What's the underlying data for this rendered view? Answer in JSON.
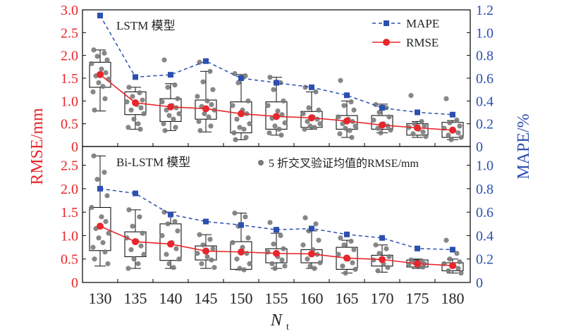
{
  "chart_data": {
    "type": "box",
    "x_categories": [
      130,
      135,
      140,
      145,
      150,
      155,
      160,
      165,
      170,
      175,
      180
    ],
    "xlabel": "N",
    "xlabel_sub": "t",
    "ylabel_left": "RMSE/mm",
    "ylabel_right": "MAPE/%",
    "colors": {
      "rmse": "#e8262b",
      "mape": "#2c4fb0",
      "scatter": "#7a7a7a",
      "box": "#111111"
    },
    "legend": {
      "mape": "MAPE",
      "rmse": "RMSE",
      "scatter": "5 折交叉验证均值的RMSE/mm"
    },
    "panels": [
      {
        "title": "LSTM 模型",
        "ylim_left": [
          0,
          3.0
        ],
        "yticks_left": [
          "0",
          "0.5",
          "1.0",
          "1.5",
          "2.0",
          "2.5",
          "3.0"
        ],
        "ylim_right": [
          0,
          1.2
        ],
        "yticks_right": [
          "0",
          "0.2",
          "0.4",
          "0.6",
          "0.8",
          "1.0",
          "1.2"
        ],
        "rmse": [
          1.58,
          0.96,
          0.87,
          0.83,
          0.72,
          0.66,
          0.63,
          0.56,
          0.47,
          0.41,
          0.36
        ],
        "mape": [
          1.15,
          0.61,
          0.63,
          0.75,
          0.6,
          0.56,
          0.52,
          0.45,
          0.34,
          0.3,
          0.28
        ],
        "boxes": [
          {
            "wl": 0.78,
            "q1": 1.3,
            "q3": 1.85,
            "wh": 2.12
          },
          {
            "wl": 0.38,
            "q1": 0.7,
            "q3": 1.2,
            "wh": 1.3
          },
          {
            "wl": 0.35,
            "q1": 0.55,
            "q3": 1.05,
            "wh": 1.38
          },
          {
            "wl": 0.32,
            "q1": 0.6,
            "q3": 1.02,
            "wh": 1.65
          },
          {
            "wl": 0.15,
            "q1": 0.3,
            "q3": 0.98,
            "wh": 1.58
          },
          {
            "wl": 0.25,
            "q1": 0.38,
            "q3": 0.98,
            "wh": 1.52
          },
          {
            "wl": 0.38,
            "q1": 0.42,
            "q3": 0.77,
            "wh": 1.2
          },
          {
            "wl": 0.2,
            "q1": 0.38,
            "q3": 0.68,
            "wh": 1.0
          },
          {
            "wl": 0.3,
            "q1": 0.38,
            "q3": 0.68,
            "wh": 0.93
          },
          {
            "wl": 0.2,
            "q1": 0.25,
            "q3": 0.5,
            "wh": 0.55
          },
          {
            "wl": 0.15,
            "q1": 0.2,
            "q3": 0.53,
            "wh": 0.57
          }
        ],
        "points": [
          [
            2.12,
            2.05,
            1.98,
            1.9,
            1.82,
            1.7,
            1.62,
            1.55,
            1.48,
            1.4,
            1.32,
            1.2,
            1.05,
            0.8
          ],
          [
            1.3,
            1.18,
            1.1,
            1.02,
            0.98,
            0.92,
            0.85,
            0.8,
            0.72,
            0.6,
            0.5,
            0.42,
            0.38
          ],
          [
            1.9,
            1.35,
            1.3,
            1.05,
            0.98,
            0.9,
            0.85,
            0.8,
            0.72,
            0.68,
            0.6,
            0.5,
            0.42,
            0.35
          ],
          [
            1.85,
            1.65,
            1.42,
            1.25,
            1.1,
            1.0,
            0.92,
            0.88,
            0.8,
            0.72,
            0.65,
            0.55,
            0.45,
            0.35
          ],
          [
            1.6,
            1.55,
            1.4,
            1.0,
            0.9,
            0.8,
            0.72,
            0.6,
            0.5,
            0.42,
            0.38,
            0.3,
            0.2,
            0.15
          ],
          [
            1.52,
            1.4,
            1.25,
            1.0,
            0.9,
            0.78,
            0.7,
            0.62,
            0.52,
            0.45,
            0.38,
            0.3,
            0.25
          ],
          [
            1.3,
            1.2,
            0.85,
            0.8,
            0.72,
            0.65,
            0.6,
            0.55,
            0.5,
            0.45,
            0.42,
            0.38
          ],
          [
            1.45,
            0.98,
            0.9,
            0.8,
            0.65,
            0.6,
            0.55,
            0.5,
            0.45,
            0.4,
            0.35,
            0.28,
            0.2
          ],
          [
            0.92,
            0.85,
            0.75,
            0.65,
            0.58,
            0.5,
            0.45,
            0.4,
            0.36,
            0.3
          ],
          [
            1.12,
            0.55,
            0.5,
            0.45,
            0.42,
            0.38,
            0.32,
            0.28,
            0.22
          ],
          [
            1.05,
            0.58,
            0.52,
            0.45,
            0.4,
            0.35,
            0.3,
            0.25,
            0.2,
            0.15
          ]
        ]
      },
      {
        "title": "Bi-LSTM 模型",
        "ylim_left": [
          0,
          2.9
        ],
        "yticks_left": [
          "0",
          "0.5",
          "1.0",
          "1.5",
          "2.0",
          "2.5"
        ],
        "ylim_right": [
          0,
          1.16
        ],
        "yticks_right": [
          "0",
          "0.2",
          "0.4",
          "0.6",
          "0.8",
          "1.0"
        ],
        "rmse": [
          1.2,
          0.87,
          0.82,
          0.67,
          0.65,
          0.62,
          0.61,
          0.52,
          0.49,
          0.4,
          0.36
        ],
        "mape": [
          0.8,
          0.76,
          0.58,
          0.52,
          0.49,
          0.45,
          0.46,
          0.41,
          0.38,
          0.29,
          0.28
        ],
        "boxes": [
          {
            "wl": 0.35,
            "q1": 0.68,
            "q3": 1.6,
            "wh": 2.7
          },
          {
            "wl": 0.3,
            "q1": 0.55,
            "q3": 1.08,
            "wh": 1.55
          },
          {
            "wl": 0.3,
            "q1": 0.47,
            "q3": 1.25,
            "wh": 1.5
          },
          {
            "wl": 0.3,
            "q1": 0.48,
            "q3": 0.78,
            "wh": 1.02
          },
          {
            "wl": 0.27,
            "q1": 0.28,
            "q3": 0.87,
            "wh": 1.48
          },
          {
            "wl": 0.3,
            "q1": 0.42,
            "q3": 0.72,
            "wh": 1.05
          },
          {
            "wl": 0.3,
            "q1": 0.42,
            "q3": 0.7,
            "wh": 1.1
          },
          {
            "wl": 0.2,
            "q1": 0.28,
            "q3": 0.75,
            "wh": 0.9
          },
          {
            "wl": 0.22,
            "q1": 0.35,
            "q3": 0.58,
            "wh": 0.8
          },
          {
            "wl": 0.3,
            "q1": 0.33,
            "q3": 0.48,
            "wh": 0.5
          },
          {
            "wl": 0.2,
            "q1": 0.25,
            "q3": 0.42,
            "wh": 0.5
          }
        ],
        "points": [
          [
            2.7,
            2.35,
            2.2,
            1.85,
            1.6,
            1.4,
            1.3,
            1.15,
            1.05,
            0.95,
            0.85,
            0.75,
            0.65,
            0.5,
            0.4
          ],
          [
            1.55,
            1.4,
            1.2,
            1.05,
            0.95,
            0.88,
            0.78,
            0.7,
            0.6,
            0.5,
            0.4,
            0.3
          ],
          [
            1.5,
            1.3,
            1.25,
            1.1,
            1.0,
            0.85,
            0.72,
            0.6,
            0.5,
            0.4,
            0.32
          ],
          [
            1.02,
            0.92,
            0.8,
            0.72,
            0.62,
            0.55,
            0.48,
            0.4,
            0.32
          ],
          [
            1.48,
            1.4,
            1.2,
            0.95,
            0.85,
            0.75,
            0.62,
            0.5,
            0.4,
            0.3,
            0.27
          ],
          [
            1.28,
            1.0,
            0.82,
            0.72,
            0.65,
            0.55,
            0.48,
            0.4,
            0.35,
            0.3
          ],
          [
            1.38,
            1.25,
            1.1,
            0.9,
            0.8,
            0.7,
            0.6,
            0.5,
            0.42,
            0.35,
            0.3
          ],
          [
            0.95,
            0.88,
            0.8,
            0.7,
            0.6,
            0.5,
            0.42,
            0.35,
            0.28,
            0.2
          ],
          [
            0.8,
            0.72,
            0.62,
            0.55,
            0.48,
            0.4,
            0.32,
            0.25
          ],
          [
            0.48,
            0.45,
            0.42,
            0.4,
            0.38,
            0.36,
            0.33
          ],
          [
            0.9,
            0.62,
            0.5,
            0.44,
            0.4,
            0.35,
            0.3,
            0.25,
            0.2
          ]
        ]
      }
    ]
  }
}
